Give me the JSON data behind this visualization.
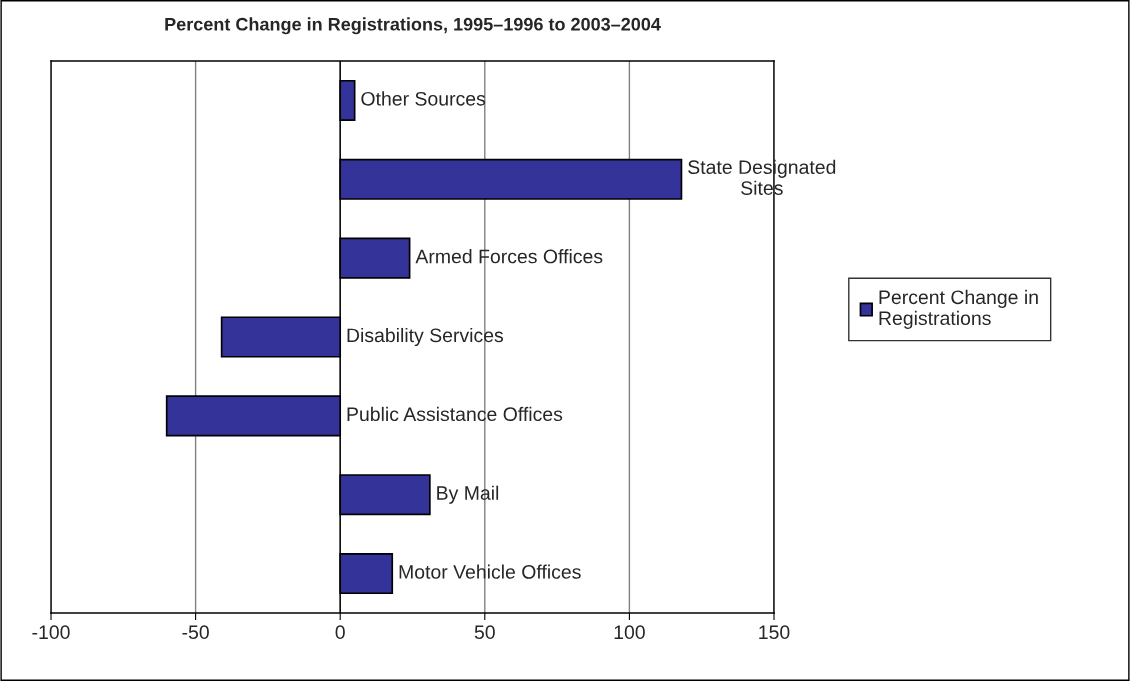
{
  "chart_data": {
    "type": "bar",
    "orientation": "horizontal",
    "title": "Percent Change in Registrations, 1995–1996 to 2003–2004",
    "categories": [
      "Other Sources",
      "State Designated Sites",
      "Armed Forces Offices",
      "Disability Services",
      "Public Assistance Offices",
      "By Mail",
      "Motor Vehicle Offices"
    ],
    "series": [
      {
        "name": "Percent Change in Registrations",
        "color": "#333399",
        "values": [
          5,
          118,
          24,
          -41,
          -60,
          31,
          18
        ]
      }
    ],
    "xlim": [
      -100,
      150
    ],
    "xticks": [
      -100,
      -50,
      0,
      50,
      100,
      150
    ],
    "grid": "x",
    "legend": "right",
    "tick_labels": "x"
  }
}
